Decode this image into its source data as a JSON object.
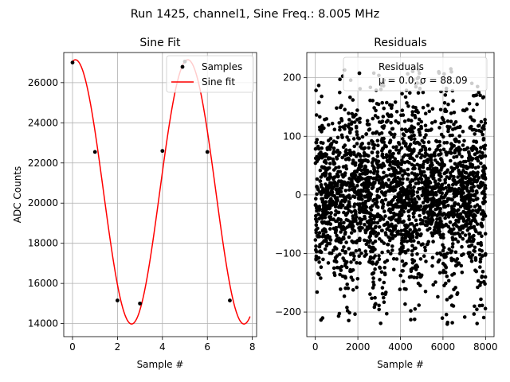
{
  "figure": {
    "suptitle": "Run 1425, channel1, Sine Freq.: 8.005 MHz"
  },
  "colors": {
    "fit": "#ff0000",
    "samples": "#000000",
    "grid": "#b0b0b0",
    "legend_edge": "#cccccc"
  },
  "chart_data": [
    {
      "type": "line",
      "title": "Sine Fit",
      "xlabel": "Sample #",
      "ylabel": "ADC Counts",
      "xlim": [
        -0.39,
        8.19
      ],
      "ylim": [
        13350,
        27500
      ],
      "xticks": [
        0,
        2,
        4,
        6,
        8
      ],
      "yticks": [
        14000,
        16000,
        18000,
        20000,
        22000,
        24000,
        26000
      ],
      "grid": true,
      "legend": "top-right",
      "series": [
        {
          "name": "Samples",
          "kind": "scatter",
          "x": [
            0,
            1,
            2,
            3,
            4,
            5,
            6,
            7
          ],
          "y": [
            27000,
            22550,
            15150,
            15000,
            22600,
            27050,
            22550,
            15150
          ]
        },
        {
          "name": "Sine fit",
          "kind": "line",
          "amplitude": 6580,
          "offset": 20560,
          "period": 5.0,
          "phase_sample": 0.13,
          "x_range": [
            0,
            7.9
          ]
        }
      ]
    },
    {
      "type": "scatter",
      "title": "Residuals",
      "xlabel": "Sample #",
      "ylabel": "",
      "xlim": [
        -400,
        8400
      ],
      "ylim": [
        -242,
        243
      ],
      "xticks": [
        0,
        2000,
        4000,
        6000,
        8000
      ],
      "yticks": [
        -200,
        -100,
        0,
        100,
        200
      ],
      "grid": true,
      "legend": "top-right",
      "series": [
        {
          "name": "Residuals",
          "stats": "μ = 0.0, σ = 88.09",
          "mean": 0.0,
          "sigma": 88.09,
          "n_points": 8000,
          "band_period": 1600,
          "y_range": [
            -222,
            215
          ]
        }
      ]
    }
  ]
}
